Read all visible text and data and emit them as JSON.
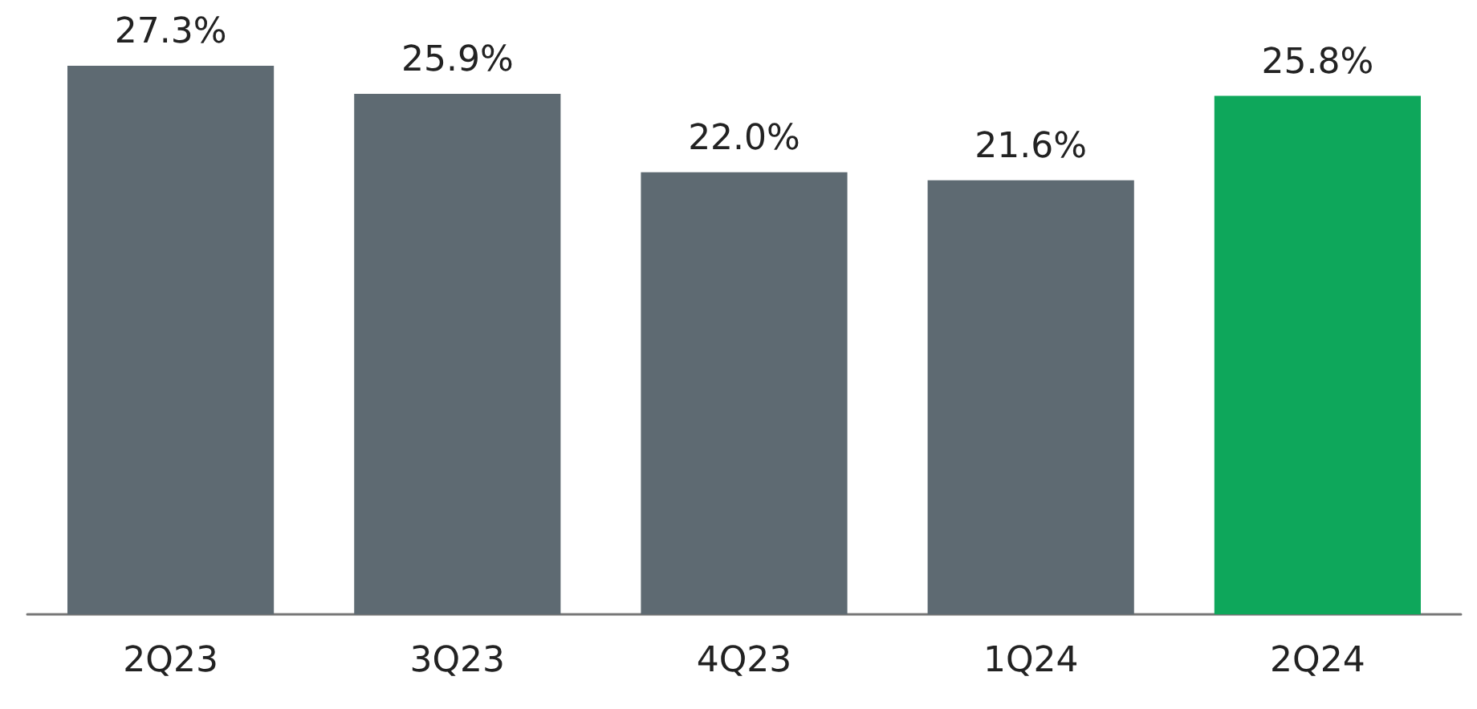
{
  "chart_data": {
    "type": "bar",
    "categories": [
      "2Q23",
      "3Q23",
      "4Q23",
      "1Q24",
      "2Q24"
    ],
    "values": [
      27.3,
      25.9,
      22.0,
      21.6,
      25.8
    ],
    "colors": [
      "#5e6a72",
      "#5e6a72",
      "#5e6a72",
      "#5e6a72",
      "#0ea75b"
    ],
    "value_labels": [
      "27.3%",
      "25.9%",
      "22.0%",
      "21.6%",
      "25.8%"
    ]
  }
}
